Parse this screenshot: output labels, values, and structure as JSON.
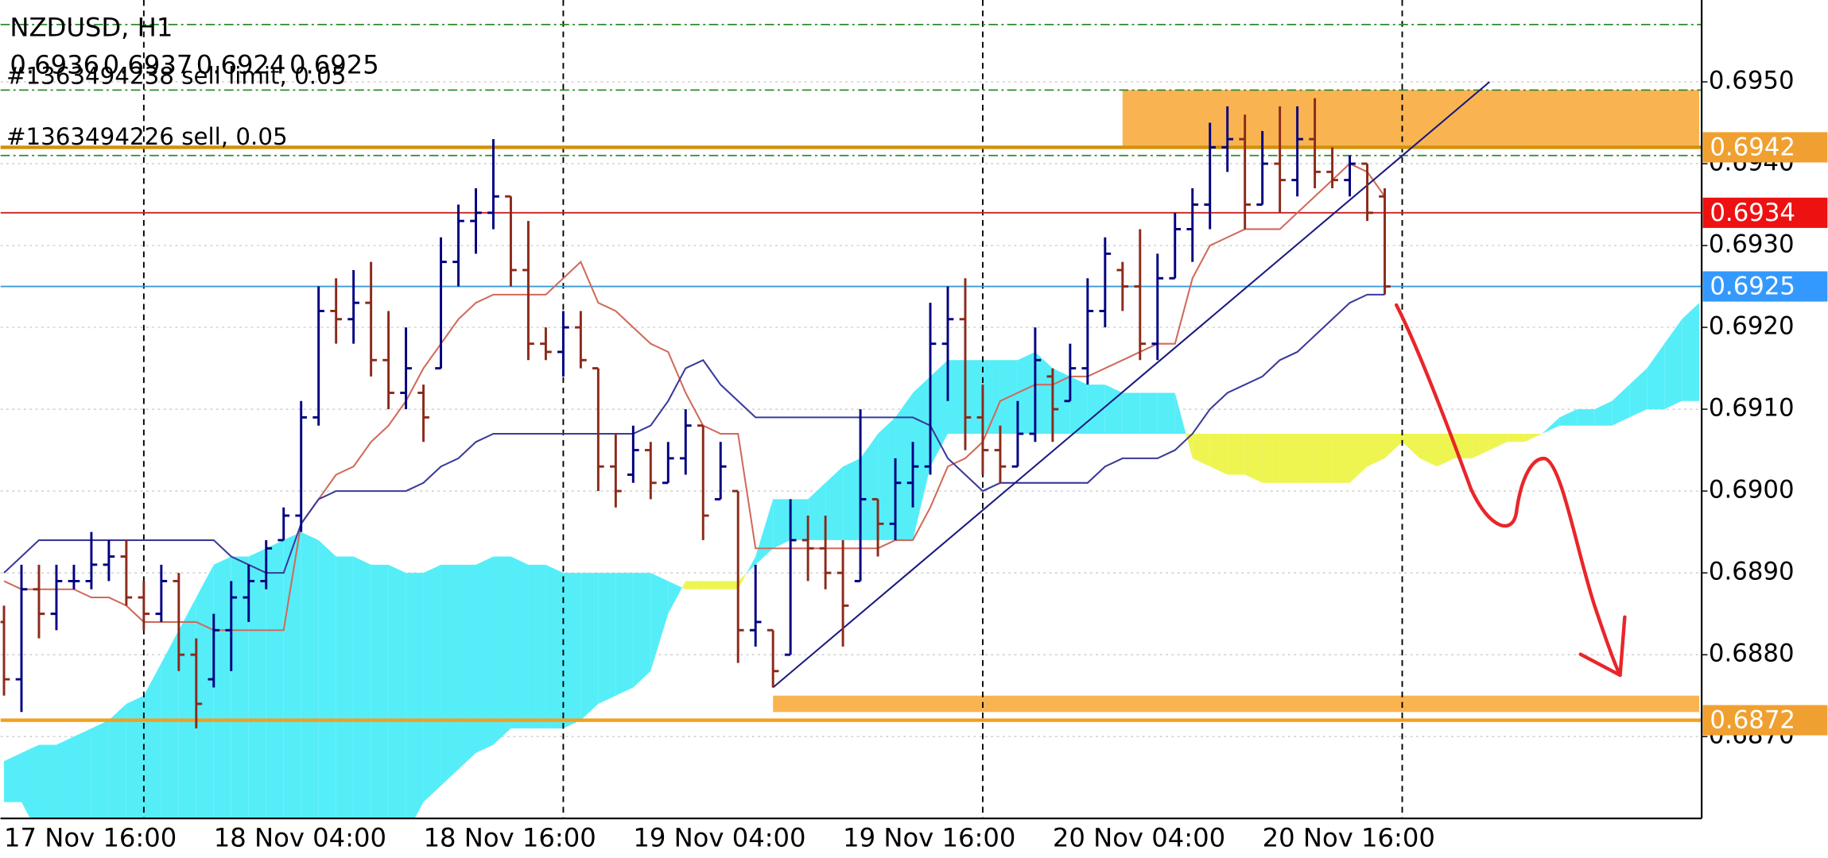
{
  "chart_data": {
    "type": "ohlc",
    "title": "NZDUSD, H1",
    "categories": [
      "17 Nov 16:00",
      null,
      null,
      null,
      null,
      null,
      null,
      null,
      null,
      null,
      null,
      null,
      "18 Nov 04:00",
      null,
      null,
      null,
      null,
      null,
      null,
      null,
      null,
      null,
      null,
      null,
      "18 Nov 16:00",
      null,
      null,
      null,
      null,
      null,
      null,
      null,
      null,
      null,
      null,
      null,
      "19 Nov 04:00",
      null,
      null,
      null,
      null,
      null,
      null,
      null,
      null,
      null,
      null,
      null,
      "19 Nov 16:00",
      null,
      null,
      null,
      null,
      null,
      null,
      null,
      null,
      null,
      null,
      null,
      "20 Nov 04:00",
      null,
      null,
      null,
      null,
      null,
      null,
      null,
      null,
      null,
      null,
      null,
      "20 Nov 16:00",
      null,
      null,
      null,
      null,
      null,
      null,
      null,
      null,
      null,
      null,
      null,
      null,
      null,
      null,
      null,
      null,
      null,
      null,
      null,
      null,
      null,
      null,
      null,
      null,
      null
    ],
    "open": [
      0.6884,
      0.6877,
      0.6888,
      0.6885,
      0.6889,
      0.6889,
      0.6891,
      0.6892,
      0.6887,
      0.6885,
      0.6889,
      0.688,
      0.6877,
      0.6883,
      0.6887,
      0.6889,
      0.6894,
      0.6897,
      0.6909,
      0.6922,
      0.6921,
      0.6923,
      0.6916,
      0.6912,
      0.6912,
      0.6915,
      0.6928,
      0.6933,
      0.6934,
      0.6936,
      0.6927,
      0.6918,
      0.6917,
      0.692,
      0.6915,
      0.6903,
      0.6902,
      0.6905,
      0.6901,
      0.6904,
      0.6908,
      0.6899,
      0.69,
      0.6883,
      0.6883,
      0.688,
      0.6894,
      0.6893,
      0.689,
      0.6889,
      0.6899,
      0.6896,
      0.6901,
      0.6903,
      0.6918,
      0.6921,
      0.6909,
      0.6905,
      0.6903,
      0.6907,
      0.6914,
      0.6911,
      0.6915,
      0.6922,
      0.6927,
      0.6925,
      0.6918,
      0.6926,
      0.6932,
      0.6935,
      0.6942,
      0.6943,
      0.6935,
      0.694,
      0.6938,
      0.6943,
      0.6939,
      0.6938,
      0.694,
      0.6936,
      null,
      null,
      null,
      null,
      null,
      null,
      null,
      null,
      null,
      null,
      null,
      null,
      null,
      null,
      null,
      null,
      null,
      null
    ],
    "high": [
      0.6886,
      0.6891,
      0.6891,
      0.6891,
      0.6891,
      0.6895,
      0.6894,
      0.6894,
      0.6889,
      0.6891,
      0.689,
      0.6882,
      0.6885,
      0.6889,
      0.6891,
      0.6894,
      0.6898,
      0.6911,
      0.6925,
      0.6926,
      0.6927,
      0.6928,
      0.6922,
      0.692,
      0.6913,
      0.6931,
      0.6935,
      0.6937,
      0.6943,
      0.6936,
      0.6933,
      0.692,
      0.6922,
      0.6922,
      0.6915,
      0.6907,
      0.6908,
      0.6906,
      0.6906,
      0.691,
      0.6908,
      0.6906,
      0.69,
      0.6891,
      0.6883,
      0.6899,
      0.6897,
      0.6897,
      0.6894,
      0.691,
      0.6899,
      0.6904,
      0.6906,
      0.6923,
      0.6925,
      0.6926,
      0.6913,
      0.6908,
      0.6911,
      0.692,
      0.6915,
      0.6918,
      0.6926,
      0.6931,
      0.6928,
      0.6932,
      0.6929,
      0.6934,
      0.6937,
      0.6945,
      0.6947,
      0.6946,
      0.6944,
      0.6947,
      0.6947,
      0.6948,
      0.6942,
      0.6941,
      0.694,
      0.6937,
      null,
      null,
      null,
      null,
      null,
      null,
      null,
      null,
      null,
      null,
      null,
      null,
      null,
      null,
      null,
      null,
      null,
      null
    ],
    "low": [
      0.6875,
      0.6873,
      0.6882,
      0.6883,
      0.6888,
      0.6888,
      0.6889,
      0.6886,
      0.6883,
      0.6884,
      0.6878,
      0.6871,
      0.6876,
      0.6878,
      0.6884,
      0.6888,
      0.6894,
      0.6895,
      0.6908,
      0.6918,
      0.6918,
      0.6914,
      0.691,
      0.691,
      0.6906,
      0.6915,
      0.6925,
      0.6929,
      0.6932,
      0.6925,
      0.6916,
      0.6916,
      0.6914,
      0.6915,
      0.69,
      0.6898,
      0.6901,
      0.6899,
      0.6901,
      0.6902,
      0.6894,
      0.6899,
      0.6879,
      0.6881,
      0.6876,
      0.688,
      0.6889,
      0.6888,
      0.6881,
      0.6889,
      0.6892,
      0.6894,
      0.6898,
      0.6902,
      0.6911,
      0.6905,
      0.6902,
      0.6901,
      0.6903,
      0.6906,
      0.6906,
      0.6911,
      0.6913,
      0.692,
      0.6922,
      0.6916,
      0.6916,
      0.6926,
      0.6928,
      0.6932,
      0.6939,
      0.6932,
      0.6935,
      0.6934,
      0.6936,
      0.6937,
      0.6937,
      0.6936,
      0.6933,
      0.6924,
      null,
      null,
      null,
      null,
      null,
      null,
      null,
      null,
      null,
      null,
      null,
      null,
      null,
      null,
      null,
      null,
      null,
      null
    ],
    "close": [
      0.6877,
      0.6888,
      0.6885,
      0.6889,
      0.6889,
      0.6891,
      0.6892,
      0.6887,
      0.6885,
      0.6889,
      0.688,
      0.6874,
      0.6883,
      0.6887,
      0.6889,
      0.6893,
      0.6897,
      0.6909,
      0.6922,
      0.6921,
      0.6923,
      0.6916,
      0.6912,
      0.6915,
      0.6909,
      0.6928,
      0.6933,
      0.6934,
      0.6936,
      0.6927,
      0.6918,
      0.6917,
      0.692,
      0.6916,
      0.6903,
      0.69,
      0.6905,
      0.6901,
      0.6904,
      0.6908,
      0.6897,
      0.6903,
      0.6883,
      0.6884,
      0.6878,
      0.6894,
      0.6893,
      0.689,
      0.6886,
      0.6899,
      0.6896,
      0.6901,
      0.6903,
      0.6918,
      0.6921,
      0.6909,
      0.6905,
      0.6903,
      0.6907,
      0.6916,
      0.691,
      0.6915,
      0.6922,
      0.6929,
      0.6925,
      0.6918,
      0.6926,
      0.6932,
      0.6935,
      0.6942,
      0.6943,
      0.6935,
      0.694,
      0.6938,
      0.6943,
      0.6939,
      0.6938,
      0.694,
      0.6934,
      0.6925,
      null,
      null,
      null,
      null,
      null,
      null,
      null,
      null,
      null,
      null,
      null,
      null,
      null,
      null,
      null,
      null,
      null,
      null
    ],
    "up_color": "#000080",
    "down_color": "#8b2a1a",
    "indicators": [
      {
        "color": "#d06a5a",
        "values": [
          0.6889,
          0.6888,
          0.6888,
          0.6888,
          0.6888,
          0.6887,
          0.6887,
          0.6886,
          0.6884,
          0.6884,
          0.6884,
          0.6884,
          0.6883,
          0.6883,
          0.6883,
          0.6883,
          0.6883,
          0.6896,
          0.6899,
          0.6902,
          0.6903,
          0.6906,
          0.6908,
          0.6911,
          0.6915,
          0.6918,
          0.6921,
          0.6923,
          0.6924,
          0.6924,
          0.6924,
          0.6924,
          0.6926,
          0.6928,
          0.6923,
          0.6922,
          0.692,
          0.6918,
          0.6917,
          0.6912,
          0.6908,
          0.6907,
          0.6907,
          0.6893,
          0.6893,
          0.6893,
          0.6893,
          0.6893,
          0.6893,
          0.6893,
          0.6893,
          0.6894,
          0.6894,
          0.6898,
          0.6903,
          0.6904,
          0.6906,
          0.6911,
          0.6912,
          0.6913,
          0.6913,
          0.6914,
          0.6914,
          0.6915,
          0.6916,
          0.6917,
          0.6918,
          0.6918,
          0.6926,
          0.693,
          0.6931,
          0.6932,
          0.6932,
          0.6932,
          0.6934,
          0.6936,
          0.6938,
          0.694,
          0.6939,
          0.6936,
          null,
          null,
          null,
          null,
          null,
          null,
          null,
          null,
          null,
          null,
          null,
          null,
          null,
          null,
          null,
          null,
          null,
          null
        ]
      },
      {
        "color": "#3a3a9a",
        "values": [
          0.689,
          0.6892,
          0.6894,
          0.6894,
          0.6894,
          0.6894,
          0.6894,
          0.6894,
          0.6894,
          0.6894,
          0.6894,
          0.6894,
          0.6894,
          0.6892,
          0.6891,
          0.689,
          0.689,
          0.6896,
          0.6899,
          0.69,
          0.69,
          0.69,
          0.69,
          0.69,
          0.6901,
          0.6903,
          0.6904,
          0.6906,
          0.6907,
          0.6907,
          0.6907,
          0.6907,
          0.6907,
          0.6907,
          0.6907,
          0.6907,
          0.6907,
          0.6908,
          0.6911,
          0.6915,
          0.6916,
          0.6913,
          0.6911,
          0.6909,
          0.6909,
          0.6909,
          0.6909,
          0.6909,
          0.6909,
          0.6909,
          0.6909,
          0.6909,
          0.6909,
          0.6908,
          0.6904,
          0.6902,
          0.69,
          0.6901,
          0.6901,
          0.6901,
          0.6901,
          0.6901,
          0.6901,
          0.6903,
          0.6904,
          0.6904,
          0.6904,
          0.6905,
          0.6907,
          0.691,
          0.6912,
          0.6913,
          0.6914,
          0.6916,
          0.6917,
          0.6919,
          0.6921,
          0.6923,
          0.6924,
          0.6924,
          null,
          null,
          null,
          null,
          null,
          null,
          null,
          null,
          null,
          null,
          null,
          null,
          null,
          null,
          null,
          null,
          null,
          null
        ]
      }
    ],
    "cloud": {
      "up_color": "#55eef8",
      "down_color": "#eef550",
      "span_a": [
        0.6867,
        0.6868,
        0.6869,
        0.6869,
        0.687,
        0.6871,
        0.6872,
        0.6874,
        0.6875,
        0.6879,
        0.6883,
        0.6887,
        0.6891,
        0.6892,
        0.6892,
        0.6893,
        0.6894,
        0.6895,
        0.6894,
        0.6892,
        0.6892,
        0.6891,
        0.6891,
        0.689,
        0.689,
        0.6891,
        0.6891,
        0.6891,
        0.6892,
        0.6892,
        0.6891,
        0.6891,
        0.689,
        0.689,
        0.689,
        0.689,
        0.689,
        0.689,
        0.6889,
        0.6888,
        0.6888,
        0.6888,
        0.6888,
        0.6892,
        0.6899,
        0.6899,
        0.6899,
        0.6901,
        0.6903,
        0.6904,
        0.6907,
        0.6909,
        0.6912,
        0.6914,
        0.6916,
        0.6916,
        0.6916,
        0.6916,
        0.6916,
        0.6917,
        0.6915,
        0.6914,
        0.6913,
        0.6913,
        0.6912,
        0.6912,
        0.6912,
        0.6912,
        0.6904,
        0.6903,
        0.6902,
        0.6902,
        0.6901,
        0.6901,
        0.6901,
        0.6901,
        0.6901,
        0.6901,
        0.6903,
        0.6904,
        0.6906,
        0.6904,
        0.6903,
        0.6904,
        0.6904,
        0.6905,
        0.6906,
        0.6906,
        0.6907,
        0.6909,
        0.691,
        0.691,
        0.6911,
        0.6913,
        0.6915,
        0.6918,
        0.6921,
        0.6923
      ],
      "span_b": [
        0.6862,
        0.6862,
        0.6858,
        0.6858,
        0.6858,
        0.6858,
        0.6858,
        0.6858,
        0.6858,
        0.6858,
        0.6858,
        0.6858,
        0.6858,
        0.6858,
        0.6858,
        0.6858,
        0.6858,
        0.6858,
        0.6858,
        0.6858,
        0.6858,
        0.6858,
        0.6858,
        0.6858,
        0.6862,
        0.6864,
        0.6866,
        0.6868,
        0.6869,
        0.6871,
        0.6871,
        0.6871,
        0.6871,
        0.6872,
        0.6874,
        0.6875,
        0.6876,
        0.6878,
        0.6885,
        0.6889,
        0.6889,
        0.6889,
        0.6889,
        0.6891,
        0.6893,
        0.6894,
        0.6894,
        0.6894,
        0.6894,
        0.6894,
        0.6894,
        0.6894,
        0.6894,
        0.6903,
        0.6907,
        0.6907,
        0.6907,
        0.6907,
        0.6907,
        0.6907,
        0.6907,
        0.6907,
        0.6907,
        0.6907,
        0.6907,
        0.6907,
        0.6907,
        0.6907,
        0.6907,
        0.6907,
        0.6907,
        0.6907,
        0.6907,
        0.6907,
        0.6907,
        0.6907,
        0.6907,
        0.6907,
        0.6907,
        0.6907,
        0.6907,
        0.6907,
        0.6907,
        0.6907,
        0.6907,
        0.6907,
        0.6907,
        0.6907,
        0.6907,
        0.6908,
        0.6908,
        0.6908,
        0.6908,
        0.6909,
        0.691,
        0.691,
        0.6911,
        0.6911
      ]
    },
    "zones": [
      {
        "from": 64,
        "to": 97,
        "low": 0.6942,
        "high": 0.6949,
        "color": "#f9b451"
      },
      {
        "from": 44,
        "to": 97,
        "low": 0.6873,
        "high": 0.6875,
        "color": "#f9b451"
      }
    ],
    "levels": [
      {
        "value": 0.6942,
        "color": "#d4900a",
        "badge_color": "#f0a030",
        "text": "#1363494226 sell, 0.05"
      },
      {
        "value": 0.6934,
        "color": "#cc2222",
        "badge_color": "#ee1111"
      },
      {
        "value": 0.6925,
        "color": "#3a9ad9",
        "badge_color": "#3399ff"
      },
      {
        "value": 0.6872,
        "color": "#f0a020",
        "badge_color": "#f0a030"
      }
    ],
    "order_levels": [
      {
        "value": 0.6957,
        "color": "#2e8b2e"
      },
      {
        "value": 0.6949,
        "color": "#2e8b2e",
        "text": "#1363494238 sell limit, 0.05"
      },
      {
        "value": 0.6941,
        "color": "#2e8b2e"
      }
    ],
    "trendline": {
      "x": [
        44,
        85
      ],
      "y": [
        0.6876,
        0.695
      ],
      "color": "#1a1a80"
    },
    "period_separators": [
      8,
      32,
      56,
      80
    ],
    "ylim": [
      0.686,
      0.696
    ],
    "yticks": [
      {
        "value": 0.687,
        "label": "0.6870"
      },
      {
        "value": 0.688,
        "label": "0.6880"
      },
      {
        "value": 0.689,
        "label": "0.6890"
      },
      {
        "value": 0.69,
        "label": "0.6900"
      },
      {
        "value": 0.691,
        "label": "0.6910"
      },
      {
        "value": 0.692,
        "label": "0.6920"
      },
      {
        "value": 0.693,
        "label": "0.6930"
      },
      {
        "value": 0.694,
        "label": "0.6940"
      },
      {
        "value": 0.695,
        "label": "0.6950"
      }
    ],
    "grid": true
  }
}
